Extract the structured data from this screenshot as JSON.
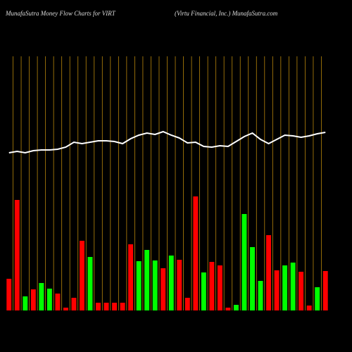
{
  "chart_data": {
    "type": "bar",
    "title": "MunafaSutra  Money Flow  Charts for VIRT",
    "subtitle": "(Virtu  Financial,  Inc.) MunafaSutra.com",
    "categories": [
      null,
      null,
      null,
      null,
      null,
      null,
      null,
      null,
      null,
      null,
      null,
      null,
      null,
      null,
      null,
      null,
      null,
      null,
      null,
      null,
      null,
      null,
      null,
      null,
      null,
      null,
      null,
      null,
      null,
      null,
      null,
      null,
      null,
      null,
      null,
      null,
      null,
      null,
      null,
      null
    ],
    "ylim": [
      0,
      361
    ],
    "grid_color": "#b8860b",
    "series": [
      {
        "type": "bar",
        "colors": [
          "#ff0000",
          "#ff0000",
          "#00ff00",
          "#ff0000",
          "#00ff00",
          "#00ff00",
          "#ff0000",
          "#ff0000",
          "#ff0000",
          "#ff0000",
          "#00ff00",
          "#ff0000",
          "#ff0000",
          "#ff0000",
          "#ff0000",
          "#ff0000",
          "#00ff00",
          "#00ff00",
          "#00ff00",
          "#ff0000",
          "#00ff00",
          "#ff0000",
          "#ff0000",
          "#ff0000",
          "#00ff00",
          "#ff0000",
          "#ff0000",
          "#ff0000",
          "#00ff00",
          "#00ff00",
          "#00ff00",
          "#00ff00",
          "#ff0000",
          "#ff0000",
          "#00ff00",
          "#00ff00",
          "#ff0000",
          "#ff0000",
          "#00ff00",
          "#ff0000"
        ],
        "values": [
          45,
          157,
          20,
          30,
          39,
          31,
          24,
          4,
          18,
          99,
          76,
          11,
          11,
          11,
          11,
          94,
          70,
          86,
          71,
          60,
          78,
          72,
          18,
          162,
          54,
          69,
          64,
          4,
          8,
          137,
          90,
          42,
          107,
          57,
          64,
          68,
          55,
          7,
          33,
          56
        ]
      },
      {
        "type": "line",
        "color": "#ffffff",
        "values": [
          224,
          226,
          224,
          227,
          228,
          228,
          229,
          232,
          239,
          237,
          239,
          241,
          241,
          240,
          237,
          244,
          249,
          252,
          250,
          254,
          249,
          245,
          238,
          239,
          233,
          232,
          234,
          233,
          240,
          247,
          252,
          243,
          237,
          243,
          249,
          248,
          246,
          248,
          251,
          253
        ]
      }
    ]
  }
}
